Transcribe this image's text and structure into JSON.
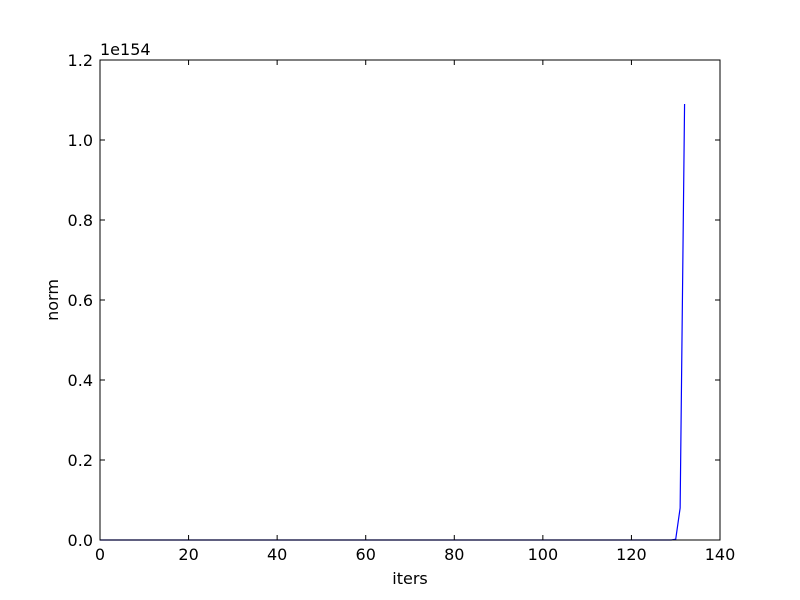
{
  "chart_data": {
    "type": "line",
    "title": "",
    "xlabel": "iters",
    "ylabel": "norm",
    "y_offset_label": "1e154",
    "xlim": [
      0,
      140
    ],
    "ylim": [
      0,
      1.2
    ],
    "grid": false,
    "x_ticks": [
      0,
      20,
      40,
      60,
      80,
      100,
      120,
      140
    ],
    "x_tick_labels": [
      "0",
      "20",
      "40",
      "60",
      "80",
      "100",
      "120",
      "140"
    ],
    "y_ticks": [
      0,
      0.2,
      0.4,
      0.6,
      0.8,
      1.0,
      1.2
    ],
    "y_tick_labels": [
      "0.0",
      "0.2",
      "0.4",
      "0.6",
      "0.8",
      "1.0",
      "1.2"
    ],
    "series": [
      {
        "color": "#0000ff",
        "x": [
          0,
          20,
          40,
          60,
          80,
          100,
          120,
          128,
          129,
          130,
          131,
          132
        ],
        "y": [
          0,
          0,
          0,
          0,
          0,
          0,
          0,
          0,
          0,
          0.002,
          0.08,
          1.09
        ]
      }
    ]
  }
}
